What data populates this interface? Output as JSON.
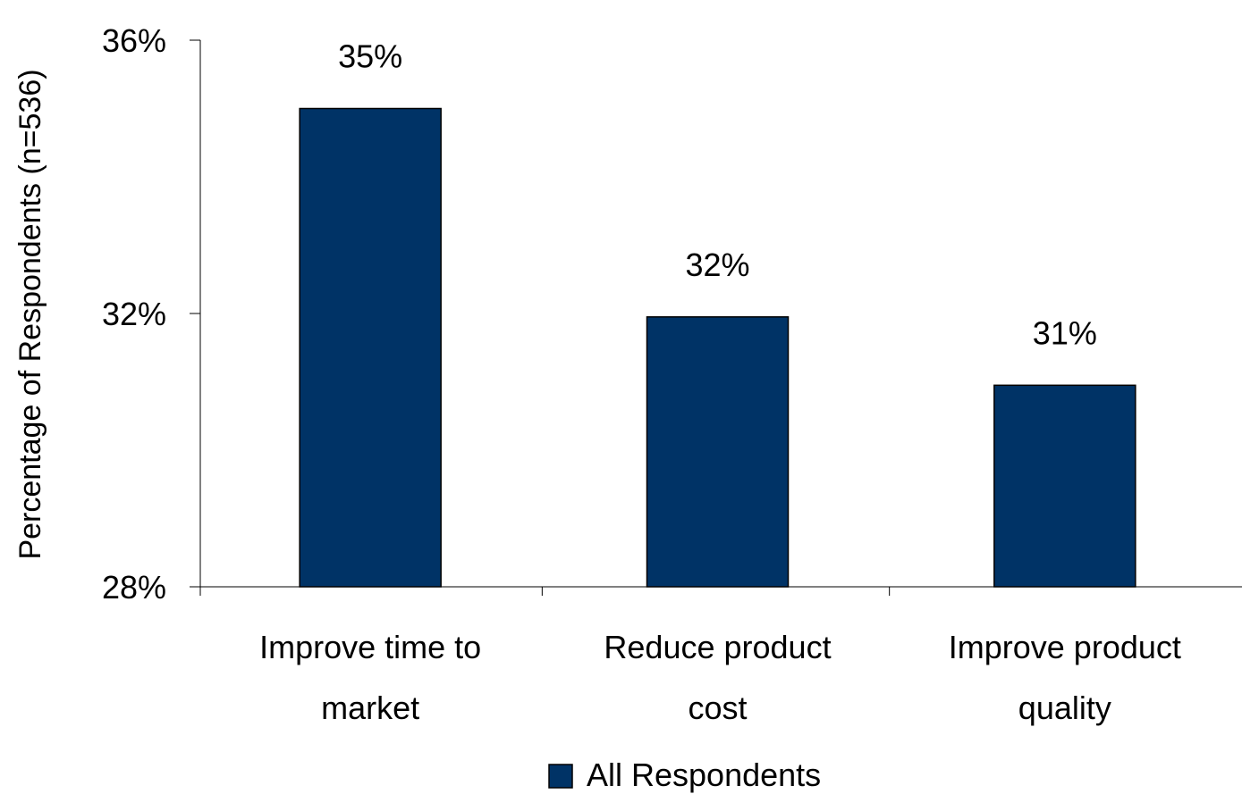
{
  "chart_data": {
    "type": "bar",
    "title": "",
    "xlabel": "",
    "ylabel": "Percentage of Respondents (n=536)",
    "ylim": [
      28,
      36
    ],
    "yticks": [
      28,
      32,
      36
    ],
    "ytick_labels": [
      "28%",
      "32%",
      "36%"
    ],
    "grid": false,
    "legend_position": "bottom",
    "categories": [
      [
        "Improve time to",
        "market"
      ],
      [
        "Reduce product",
        "cost"
      ],
      [
        "Improve product",
        "quality"
      ]
    ],
    "series": [
      {
        "name": "All Respondents",
        "color": "#003366",
        "values": [
          35,
          31.95,
          30.95
        ],
        "labels": [
          "35%",
          "32%",
          "31%"
        ]
      }
    ]
  }
}
